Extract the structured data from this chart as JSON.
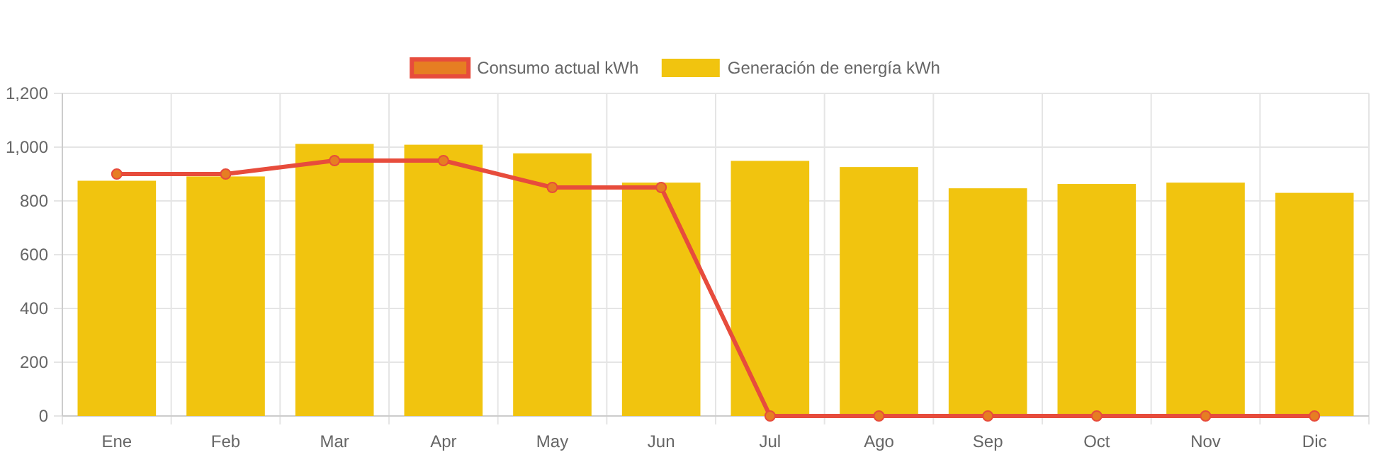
{
  "chart_data": {
    "type": "bar",
    "categories": [
      "Ene",
      "Feb",
      "Mar",
      "Apr",
      "May",
      "Jun",
      "Jul",
      "Ago",
      "Sep",
      "Oct",
      "Nov",
      "Dic"
    ],
    "series": [
      {
        "name": "Consumo actual kWh",
        "type": "line",
        "color": "#e74c3c",
        "values": [
          900,
          900,
          950,
          950,
          850,
          850,
          0,
          0,
          0,
          0,
          0,
          0
        ]
      },
      {
        "name": "Generación de energía kWh",
        "color": "#f1c40f",
        "values": [
          875,
          891,
          1012,
          1009,
          977,
          868,
          949,
          926,
          847,
          863,
          868,
          830
        ]
      }
    ],
    "ylim": [
      0,
      1200
    ],
    "yticks": [
      {
        "value": 0,
        "label": "0"
      },
      {
        "value": 200,
        "label": "200"
      },
      {
        "value": 400,
        "label": "400"
      },
      {
        "value": 600,
        "label": "600"
      },
      {
        "value": 800,
        "label": "800"
      },
      {
        "value": 1000,
        "label": "1,000"
      },
      {
        "value": 1200,
        "label": "1,200"
      }
    ],
    "grid": true,
    "legend": "top",
    "marker": "circle",
    "line_style": "solid"
  }
}
